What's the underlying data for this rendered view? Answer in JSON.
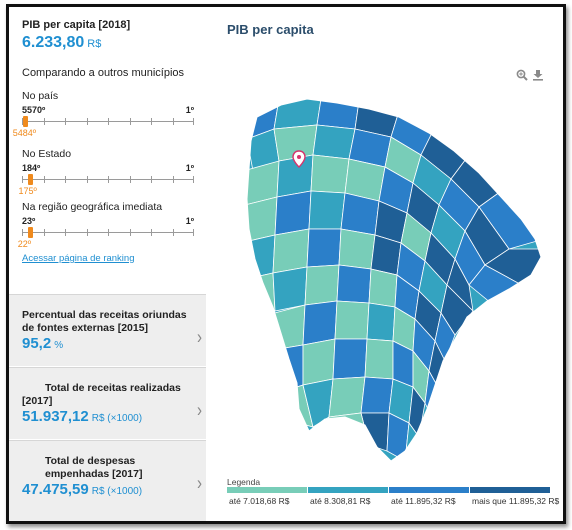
{
  "indicator": {
    "label": "PIB per capita [2018]",
    "value": "6.233,80",
    "unit": "R$"
  },
  "comparison": {
    "title": "Comparando a outros municípios",
    "rankings": [
      {
        "label": "No país",
        "worst": "5570º",
        "best": "1º",
        "current": "5484º",
        "position": 0.016
      },
      {
        "label": "No Estado",
        "worst": "184º",
        "best": "1º",
        "current": "175º",
        "position": 0.049
      },
      {
        "label": "Na região geográfica imediata",
        "worst": "23º",
        "best": "1º",
        "current": "22º",
        "position": 0.045
      }
    ],
    "link": "Acessar página de ranking"
  },
  "cards": [
    {
      "title_lines": [
        "Percentual das receitas oriundas",
        "de fontes externas [2015]"
      ],
      "value": "95,2",
      "unit": "%"
    },
    {
      "title_lines": [
        "Total de receitas realizadas",
        "[2017]"
      ],
      "value": "51.937,12",
      "unit": "R$ (×1000)"
    },
    {
      "title_lines": [
        "Total de despesas",
        "empenhadas [2017]"
      ],
      "value": "47.475,59",
      "unit": "R$ (×1000)"
    }
  ],
  "map": {
    "title": "PIB per capita",
    "icons": [
      "zoom-icon",
      "download-icon"
    ],
    "marker_icon": "location-pin-icon",
    "legend_title": "Legenda",
    "legend": [
      {
        "label": "até 7.018,68 R$",
        "color": "#78cdb8"
      },
      {
        "label": "até 8.308,81 R$",
        "color": "#34a3c0"
      },
      {
        "label": "até 11.895,32 R$",
        "color": "#2b7fc9"
      },
      {
        "label": "mais que 11.895,32 R$",
        "color": "#1f5f96"
      }
    ]
  }
}
